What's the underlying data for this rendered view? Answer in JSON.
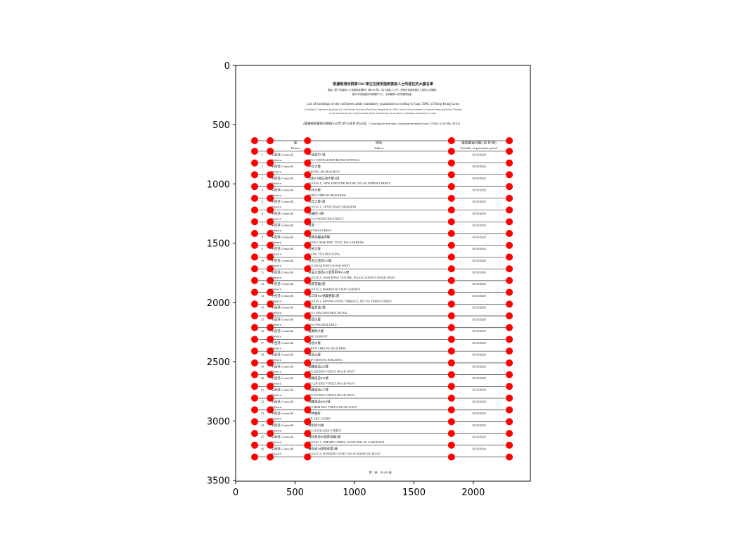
{
  "chart_data": {
    "type": "scatter",
    "color": "#ff0000",
    "xlim": [
      0,
      2480
    ],
    "ylim": [
      3508,
      0
    ],
    "xticks": [
      0,
      500,
      1000,
      1500,
      2000
    ],
    "yticks": [
      0,
      500,
      1000,
      1500,
      2000,
      2500,
      3000,
      3500
    ],
    "x": [
      160,
      291,
      605,
      1816,
      2303,
      160,
      291,
      605,
      1816,
      2303,
      160,
      291,
      605,
      1816,
      2303,
      160,
      291,
      605,
      1816,
      2303,
      160,
      291,
      605,
      1816,
      2303,
      160,
      291,
      605,
      1816,
      2303,
      160,
      291,
      605,
      1816,
      2303,
      160,
      291,
      605,
      1816,
      2303,
      160,
      291,
      605,
      1816,
      2303,
      160,
      291,
      605,
      1816,
      2303,
      160,
      291,
      605,
      1816,
      2303,
      160,
      291,
      605,
      1816,
      2303,
      160,
      291,
      605,
      1816,
      2303,
      160,
      291,
      605,
      1816,
      2303,
      160,
      291,
      605,
      1816,
      2303,
      160,
      291,
      605,
      1816,
      2303,
      160,
      291,
      605,
      1816,
      2303,
      160,
      291,
      605,
      1816,
      2303,
      160,
      291,
      605,
      1816,
      2303,
      160,
      291,
      605,
      1816,
      2303,
      160,
      291,
      605,
      1816,
      2303,
      160,
      291,
      605,
      1816,
      2303,
      160,
      291,
      605,
      1816,
      2303,
      160,
      291,
      605,
      1816,
      2303,
      160,
      291,
      605,
      1816,
      2303,
      160,
      291,
      605,
      1816,
      2303,
      160,
      291,
      605,
      1816,
      2303,
      160,
      291,
      605,
      1816,
      2303
    ],
    "y": [
      635,
      635,
      635,
      635,
      635,
      724,
      724,
      724,
      724,
      724,
      823,
      823,
      823,
      823,
      823,
      922,
      922,
      922,
      922,
      922,
      1022,
      1022,
      1022,
      1022,
      1022,
      1121,
      1121,
      1121,
      1121,
      1121,
      1220,
      1220,
      1220,
      1220,
      1220,
      1319,
      1319,
      1319,
      1319,
      1319,
      1418,
      1418,
      1418,
      1418,
      1418,
      1518,
      1518,
      1518,
      1518,
      1518,
      1617,
      1617,
      1617,
      1617,
      1617,
      1716,
      1716,
      1716,
      1716,
      1716,
      1815,
      1815,
      1815,
      1815,
      1815,
      1914,
      1914,
      1914,
      1914,
      1914,
      2014,
      2014,
      2014,
      2014,
      2014,
      2113,
      2113,
      2113,
      2113,
      2113,
      2212,
      2212,
      2212,
      2212,
      2212,
      2311,
      2311,
      2311,
      2311,
      2311,
      2410,
      2410,
      2410,
      2410,
      2410,
      2510,
      2510,
      2510,
      2510,
      2510,
      2609,
      2609,
      2609,
      2609,
      2609,
      2708,
      2708,
      2708,
      2708,
      2708,
      2807,
      2807,
      2807,
      2807,
      2807,
      2906,
      2906,
      2906,
      2906,
      2906,
      3006,
      3006,
      3006,
      3006,
      3006,
      3105,
      3105,
      3105,
      3105,
      3105,
      3204,
      3204,
      3204,
      3204,
      3204,
      3304,
      3304,
      3304,
      3304,
      3304
    ],
    "image": {
      "title_zh": "根據香港法例第599C章正在接受強制檢疫人士所居住的大廈名單",
      "notice_zh": [
        "根據《若干到香港人士強制檢疫規例》(第599C章)，除了豁免人士外，所有在到香港當日之前的14日期間，",
        "曾在內地逗留任何時間的人士，必須接受14天的強制檢疫。"
      ],
      "title_en": "List of buildings of the confinees under mandatory quarantine according to Cap. 599C of Hong Kong Laws",
      "notice_en": [
        "According to Compulsory Quarantine of Certain Persons Arriving at Hong Kong Regulation(Cap. 599C), except for those exempted, all persons having stayed in the Mainland",
        "for any period during the 14 days preceding arrival in Hong Kong will be subject to compulsory quarantine for 14 days."
      ],
      "period": "(篩選檢疫最後日期由2020年3月13日至3月26日。Covering the end date of quarantine period from 13 Mar to 26 Mar 2020.)",
      "headers": {
        "district_zh": "區",
        "district_en": "District",
        "address_zh": "地址",
        "address_en": "Address",
        "date_zh": "檢疫最後日期 (日/月/年)",
        "date_en": "End date of quarantine period"
      },
      "rows": [
        {
          "no": "1",
          "district": [
            "中西區 Central &",
            "Western"
          ],
          "address_zh": "干諾道中5號",
          "address_en": "NO.5 CONNAUGHT ROAD CENTRAL",
          "date": "13/03/2020"
        },
        {
          "no": "2",
          "district": [
            "中西區 Central &",
            "Western"
          ],
          "address_zh": "中亞大廈",
          "address_en": "CHUNG AH MANSION",
          "date": "13/03/2020"
        },
        {
          "no": "3",
          "district": [
            "中西區 Central &",
            "Western"
          ],
          "address_zh": "北街4-8號正福大廈A座",
          "address_en": "BLOCK A, NEW FORTUNE HOUSE, NO.4-8 NORTH STREET",
          "date": "13/03/2020"
        },
        {
          "no": "4",
          "district": [
            "中西區 Central &",
            "Western"
          ],
          "address_zh": "永祥大廈",
          "address_en": "WING CHEUNG BUILDING",
          "date": "13/03/2020"
        },
        {
          "no": "5",
          "district": [
            "中西區 Central &",
            "Western"
          ],
          "address_zh": "百年大廈1座",
          "address_en": "BLOCK 1, CENTENARY MANSION",
          "date": "13/03/2020"
        },
        {
          "no": "6",
          "district": [
            "中西區 Central &",
            "Western"
          ],
          "address_zh": "西邊街34號",
          "address_en": "NO.34 WESTERN STREET",
          "date": "13/03/2020"
        },
        {
          "no": "7",
          "district": [
            "中西區 Central &",
            "Western"
          ],
          "address_zh": "寶翠",
          "address_en": "ENVISSA CREST",
          "date": "13/03/2020"
        },
        {
          "no": "8",
          "district": [
            "中西區 Central &",
            "Western"
          ],
          "address_zh": "東輝花園福澤閣",
          "address_en": "FOOK CHAK HSE, TUNG FAI GARDENS",
          "date": "13/03/2020"
        },
        {
          "no": "9",
          "district": [
            "中西區 Central &",
            "Western"
          ],
          "address_zh": "恒裕大廈",
          "address_en": "HANG YUE BUILDING",
          "date": "13/03/2020"
        },
        {
          "no": "10",
          "district": [
            "中西區 Central &",
            "Western"
          ],
          "address_zh": "皇后大道西239號",
          "address_en": "NO.239 QUEEN'S ROAD WEST",
          "date": "13/03/2020"
        },
        {
          "no": "11",
          "district": [
            "中西區 Central &",
            "Western"
          ],
          "address_zh": "皇后大道西421號華明中心A座",
          "address_en": "BLOCK A, WAH MING CENTRE, NO.421 QUEEN'S ROAD WEST",
          "date": "13/03/2020"
        },
        {
          "no": "12",
          "district": [
            "中西區 Central &",
            "Western"
          ],
          "address_zh": "海景花園3座",
          "address_en": "BLOCK 3, HARBOUR VIEW GARDEN",
          "date": "13/03/2020"
        },
        {
          "no": "13",
          "district": [
            "中西區 Central &",
            "Western"
          ],
          "address_zh": "第三街163號廣豐臺2座",
          "address_en": "BLOCK 2, KWONG FUNG TERRACE, NO.163 THIRD STREET",
          "date": "13/03/2020"
        },
        {
          "no": "14",
          "district": [
            "中西區 Central &",
            "Western"
          ],
          "address_zh": "麥當勞道1號",
          "address_en": "NO.1 MACDONNELL ROAD",
          "date": "13/03/2020"
        },
        {
          "no": "15",
          "district": [
            "中西區 Central &",
            "Western"
          ],
          "address_zh": "惠德大廈",
          "address_en": "WAI TAK BUILDING",
          "date": "13/03/2020"
        },
        {
          "no": "16",
          "district": [
            "中西區 Central &",
            "Western"
          ],
          "address_zh": "雅賓利大廈",
          "address_en": "THE ALBANY",
          "date": "13/03/2020"
        },
        {
          "no": "17",
          "district": [
            "中西區 Central &",
            "Western"
          ],
          "address_zh": "振昌大廈",
          "address_en": "CHUN CHEONG BUILDING",
          "date": "13/03/2020"
        },
        {
          "no": "18",
          "district": [
            "中西區 Central &",
            "Western"
          ],
          "address_zh": "業昌大廈",
          "address_en": "YIP CHEUNG BUILDING",
          "date": "13/03/2020"
        },
        {
          "no": "19",
          "district": [
            "中西區 Central &",
            "Western"
          ],
          "address_zh": "德輔道西228號",
          "address_en": "NO.228 DES VOEUX ROAD WEST",
          "date": "13/03/2020"
        },
        {
          "no": "20",
          "district": [
            "中西區 Central &",
            "Western"
          ],
          "address_zh": "德輔道西230號",
          "address_en": "NO.230 DES VOEUX ROAD WEST",
          "date": "13/03/2020"
        },
        {
          "no": "21",
          "district": [
            "中西區 Central &",
            "Western"
          ],
          "address_zh": "德輔道西237號",
          "address_en": "NO.237 DES VOEUX ROAD WEST",
          "date": "13/03/2020"
        },
        {
          "no": "22",
          "district": [
            "中西區 Central &",
            "Western"
          ],
          "address_zh": "德輔道西406B號",
          "address_en": "NO.406B DES VOEUX ROAD WEST",
          "date": "13/03/2020"
        },
        {
          "no": "23",
          "district": [
            "中西區 Central &",
            "Western"
          ],
          "address_zh": "學林雅軒",
          "address_en": "HILARY COURT",
          "date": "13/03/2020"
        },
        {
          "no": "24",
          "district": [
            "中西區 Central &",
            "Western"
          ],
          "address_zh": "禧利街18號",
          "address_en": "NO.18 HILLIER STREET",
          "date": "13/03/2020"
        },
        {
          "no": "25",
          "district": [
            "中西區 Central &",
            "Western"
          ],
          "address_zh": "薄扶林道89號寶翠園1座",
          "address_en": "BLOCK 1, THE BELCHER'S, NO.89 POK FU LAM ROAD",
          "date": "13/03/2020"
        },
        {
          "no": "26",
          "district": [
            "中西區 Central &",
            "Western"
          ],
          "address_zh": "醫院道18號榮華閣2座",
          "address_en": "BLOCK 2, WINNER COURT, NO.18 HOSPITAL ROAD",
          "date": "13/03/2020"
        }
      ],
      "footer": "第 1 頁，共 444 頁"
    }
  }
}
